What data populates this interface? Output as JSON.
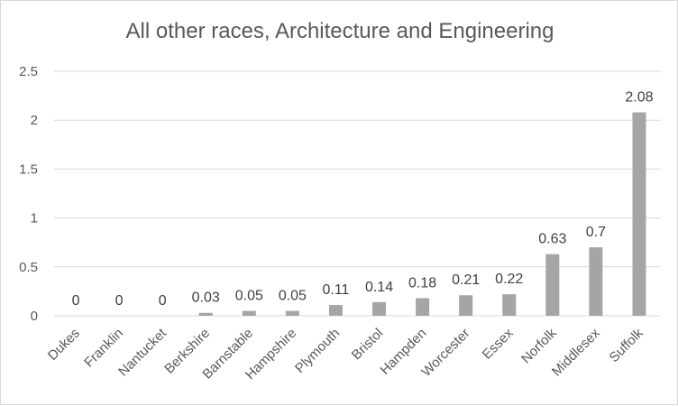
{
  "chart_data": {
    "type": "bar",
    "title": "All other races, Architecture and Engineering",
    "categories": [
      "Dukes",
      "Franklin",
      "Nantucket",
      "Berkshire",
      "Barnstable",
      "Hampshire",
      "Plymouth",
      "Bristol",
      "Hampden",
      "Worcester",
      "Essex",
      "Norfolk",
      "Middlesex",
      "Suffolk"
    ],
    "values": [
      0,
      0,
      0,
      0.03,
      0.05,
      0.05,
      0.11,
      0.14,
      0.18,
      0.21,
      0.22,
      0.63,
      0.7,
      2.08
    ],
    "data_labels": [
      "0",
      "0",
      "0",
      "0.03",
      "0.05",
      "0.05",
      "0.11",
      "0.14",
      "0.18",
      "0.21",
      "0.22",
      "0.63",
      "0.7",
      "2.08"
    ],
    "ylim": [
      0,
      2.5
    ],
    "yticks": [
      "0",
      "0.5",
      "1",
      "1.5",
      "2",
      "2.5"
    ],
    "xlabel": "",
    "ylabel": "",
    "grid": true,
    "legend": "none",
    "colors": {
      "bar": "#a5a5a5",
      "grid": "#d9d9d9",
      "text": "#595959",
      "label": "#404040"
    }
  }
}
